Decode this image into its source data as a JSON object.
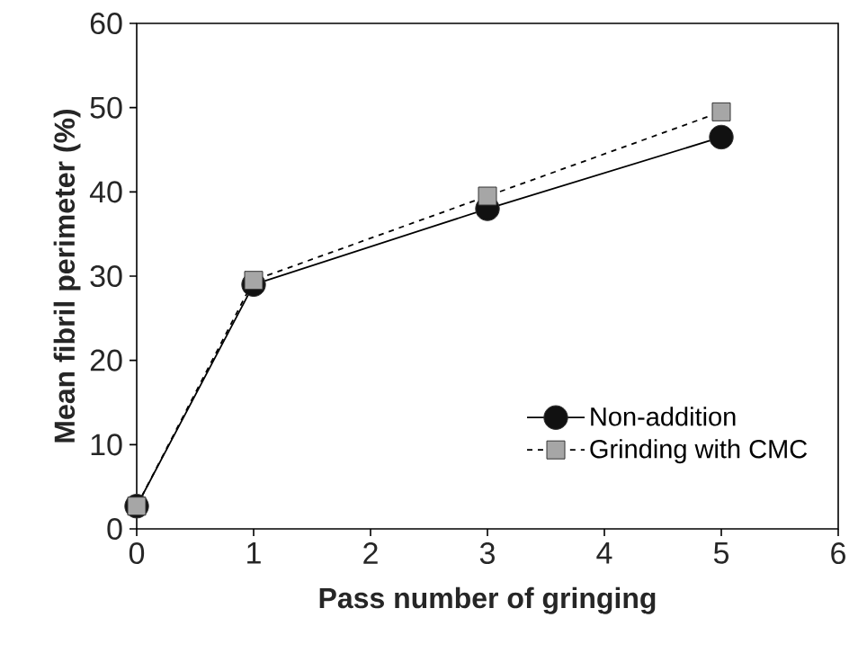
{
  "chart_data": {
    "type": "line",
    "xlabel": "Pass number of gringing",
    "ylabel": "Mean fibril perimeter (%)",
    "x": [
      0,
      1,
      3,
      5
    ],
    "series": [
      {
        "name": "Non-addition",
        "color": "#111111",
        "values": [
          2.7,
          29.0,
          38.0,
          46.5
        ],
        "marker": "circle",
        "line_style": "solid"
      },
      {
        "name": "Grinding with CMC",
        "color": "#a6a6a6",
        "values": [
          2.7,
          29.5,
          39.5,
          49.5
        ],
        "marker": "square",
        "line_style": "dashed"
      }
    ],
    "xlim": [
      0,
      6
    ],
    "xticks": [
      0,
      1,
      2,
      3,
      4,
      5,
      6
    ],
    "ylim": [
      0,
      60
    ],
    "yticks": [
      0,
      10,
      20,
      30,
      40,
      50,
      60
    ],
    "grid": false,
    "legend": "bottom right"
  }
}
